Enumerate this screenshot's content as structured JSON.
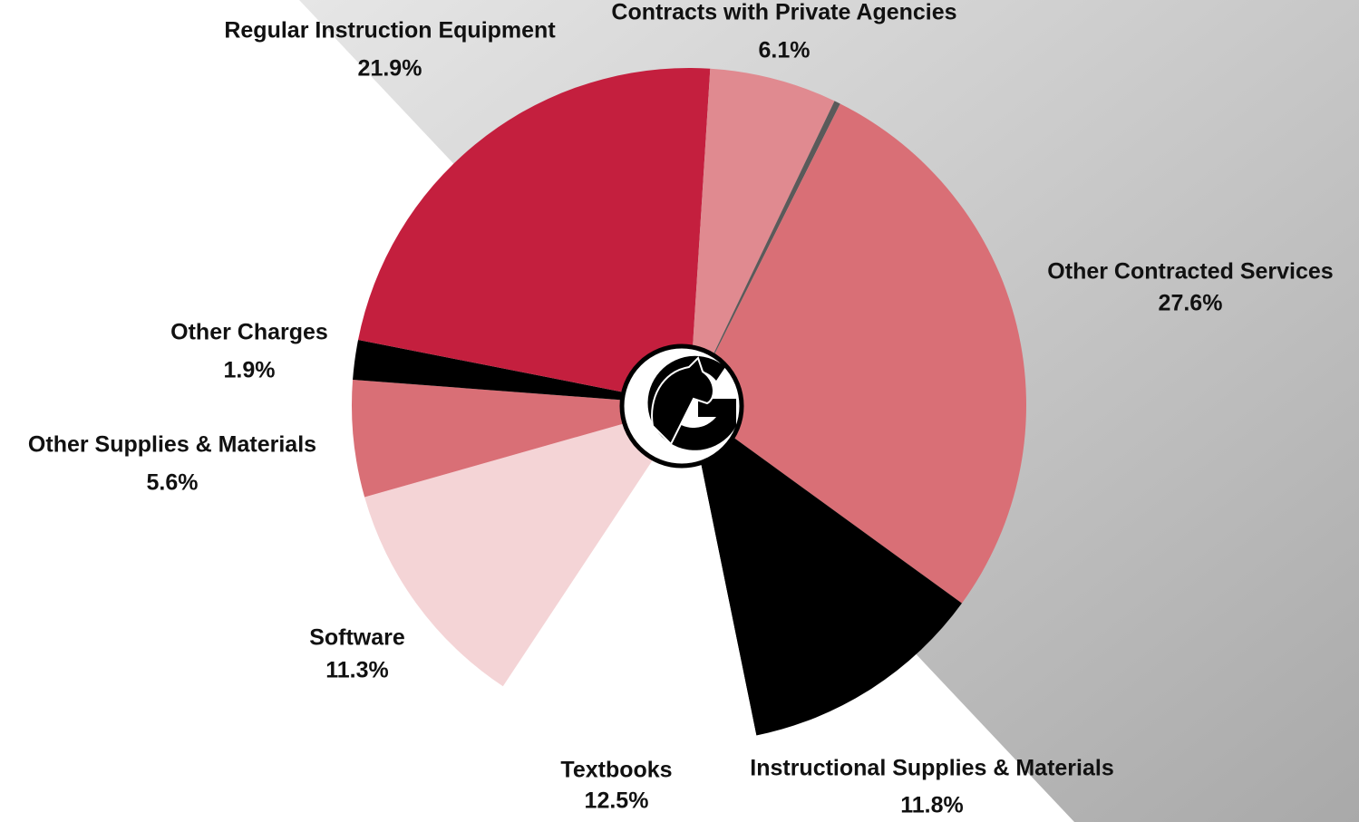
{
  "chart_data": {
    "type": "pie",
    "categories": [
      null,
      "Contracts with Private Agencies",
      null,
      "Other Contracted Services",
      "Instructional Supplies & Materials",
      "Textbooks",
      "Software",
      "Other Supplies & Materials",
      "Other Charges",
      "Regular Instruction Equipment"
    ],
    "values": [
      1.0,
      6.1,
      0.3,
      27.6,
      11.8,
      12.5,
      11.3,
      5.6,
      1.9,
      21.9
    ],
    "value_labels": [
      null,
      "6.1%",
      null,
      "27.6%",
      "11.8%",
      "12.5%",
      "11.3%",
      "5.6%",
      "1.9%",
      "21.9%"
    ],
    "colors": [
      "#c41f3e",
      "#e08a90",
      "#5a5a5a",
      "#d96f76",
      "#000000",
      "#ffffff",
      "#f4d4d6",
      "#d96f76",
      "#000000",
      "#c41f3e"
    ]
  }
}
